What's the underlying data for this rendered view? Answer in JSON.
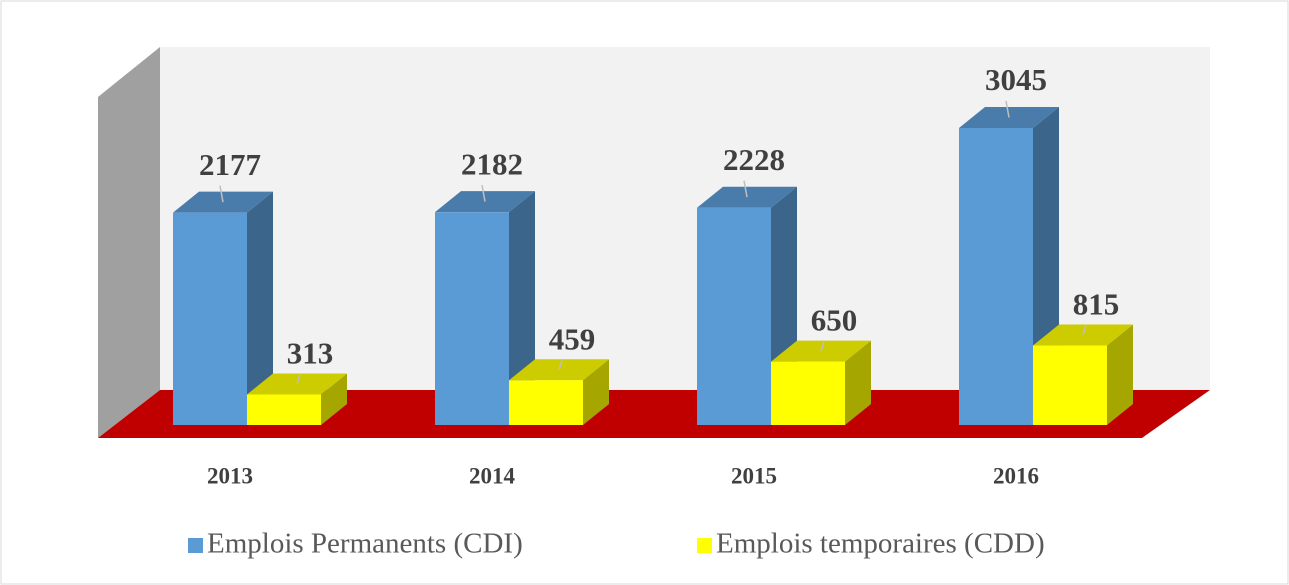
{
  "chart_data": {
    "type": "bar3d",
    "categories": [
      "2013",
      "2014",
      "2015",
      "2016"
    ],
    "series": [
      {
        "name": "Emplois Permanents (CDI)",
        "color": "#5b9bd5",
        "values": [
          2177,
          2182,
          2228,
          3045
        ]
      },
      {
        "name": "Emplois temporaires (CDD)",
        "color": "#ffff00",
        "values": [
          313,
          459,
          650,
          815
        ]
      }
    ]
  }
}
